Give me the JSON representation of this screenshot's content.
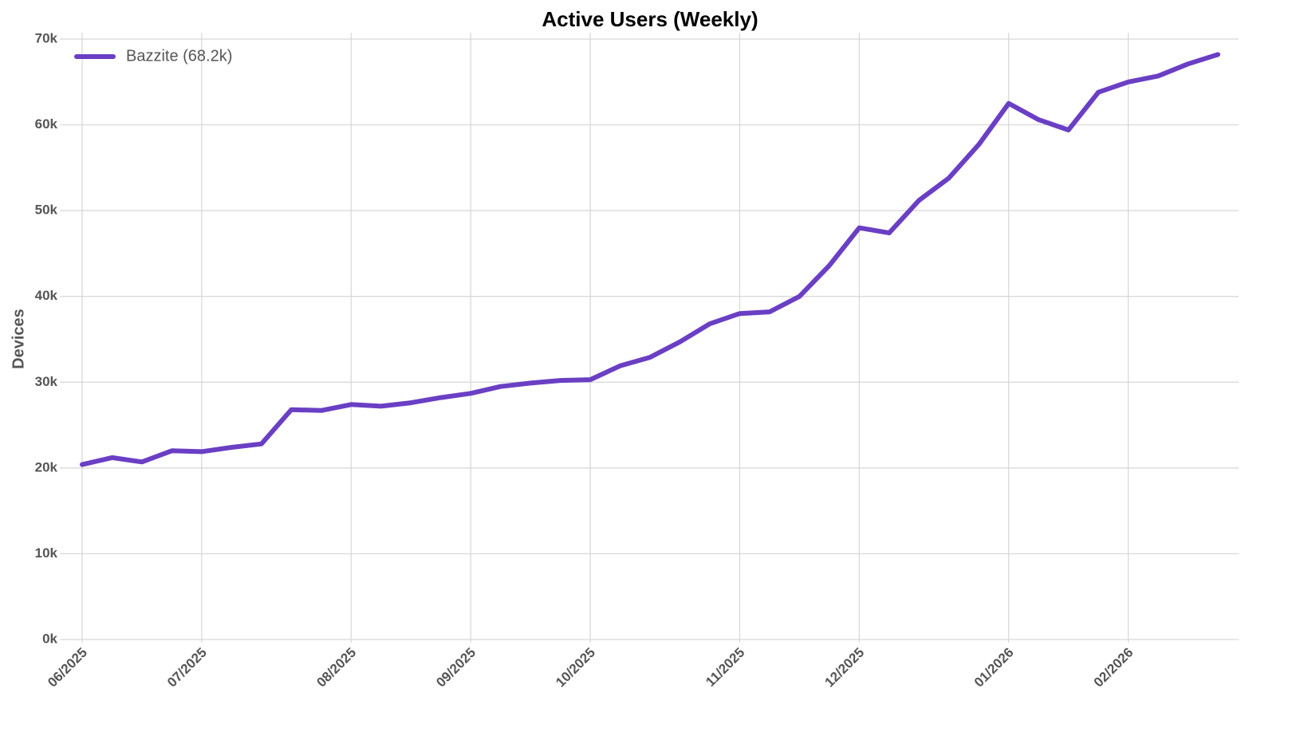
{
  "chart_data": {
    "type": "line",
    "title": "Active Users (Weekly)",
    "y_label": "Devices",
    "categories": [
      "06/2025",
      null,
      null,
      null,
      "07/2025",
      null,
      null,
      null,
      null,
      "08/2025",
      null,
      null,
      null,
      "09/2025",
      null,
      null,
      null,
      "10/2025",
      null,
      null,
      null,
      null,
      "11/2025",
      null,
      null,
      null,
      "12/2025",
      null,
      null,
      null,
      null,
      "01/2026",
      null,
      null,
      null,
      "02/2026",
      null,
      null,
      null
    ],
    "series": [
      {
        "name": "Bazzite (68.2k)",
        "color": "#6a3fc4",
        "values": [
          20400,
          21200,
          20700,
          22000,
          21900,
          22400,
          22800,
          26800,
          26700,
          27400,
          27200,
          27600,
          28200,
          28700,
          29500,
          29900,
          30200,
          30300,
          31900,
          32900,
          34700,
          36800,
          38000,
          38200,
          40000,
          43600,
          48000,
          47400,
          51200,
          53800,
          57700,
          62500,
          60600,
          59400,
          63800,
          65000,
          65700,
          67100,
          68200
        ]
      }
    ],
    "ylim": [
      0,
      70000
    ],
    "yticks": [
      {
        "value": 0,
        "label": "0k"
      },
      {
        "value": 10000,
        "label": "10k"
      },
      {
        "value": 20000,
        "label": "20k"
      },
      {
        "value": 30000,
        "label": "30k"
      },
      {
        "value": 40000,
        "label": "40k"
      },
      {
        "value": 50000,
        "label": "50k"
      },
      {
        "value": 60000,
        "label": "60k"
      },
      {
        "value": 70000,
        "label": "70k"
      }
    ],
    "grid": true,
    "legend": "upper left"
  }
}
